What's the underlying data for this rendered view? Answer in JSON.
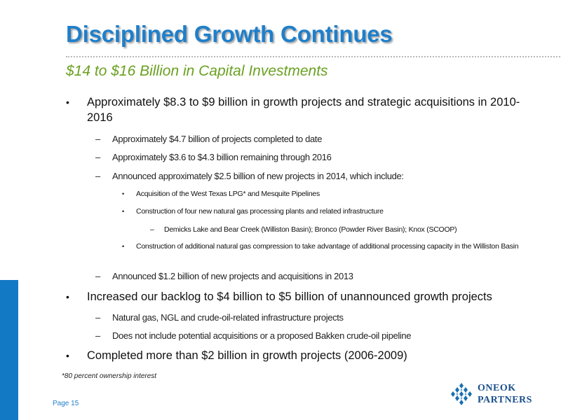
{
  "slide": {
    "title": "Disciplined Growth Continues",
    "subtitle": "$14 to $16 Billion in Capital Investments",
    "footnote": "*80 percent ownership interest",
    "page": "Page 15"
  },
  "bullets": [
    {
      "text": "Approximately $8.3 to $9 billion in growth projects and strategic acquisitions in 2010-2016"
    },
    {
      "text": "Approximately $4.7 billion of projects completed to date"
    },
    {
      "text": "Approximately $3.6 to $4.3 billion remaining through 2016"
    },
    {
      "text": "Announced approximately $2.5 billion of new projects in 2014, which include:"
    },
    {
      "text": "Acquisition of the West Texas LPG* and Mesquite Pipelines"
    },
    {
      "text": "Construction of four new natural gas processing plants and related infrastructure"
    },
    {
      "text": "Demicks Lake and Bear Creek (Williston Basin); Bronco (Powder River Basin); Knox (SCOOP)"
    },
    {
      "text": "Construction of additional natural gas compression to take advantage of additional processing capacity in the Williston Basin"
    },
    {
      "text": "Announced $1.2 billion of new projects and acquisitions in 2013"
    },
    {
      "text": "Increased our backlog to $4 billion to $5 billion of unannounced growth projects"
    },
    {
      "text": "Natural gas, NGL and crude-oil-related infrastructure projects"
    },
    {
      "text": "Does not include potential acquisitions or a proposed Bakken crude-oil pipeline"
    },
    {
      "text": "Completed more than $2 billion in growth projects (2006-2009)"
    }
  ],
  "markers": {
    "bullet": "•",
    "dash": "–"
  },
  "logo": {
    "line1": "ONEOK",
    "line2": "PARTNERS"
  },
  "colors": {
    "title": "#1f7fca",
    "subtitle": "#6aa121",
    "accent_bar": "#1279c4",
    "logo": "#1a4f8c"
  }
}
